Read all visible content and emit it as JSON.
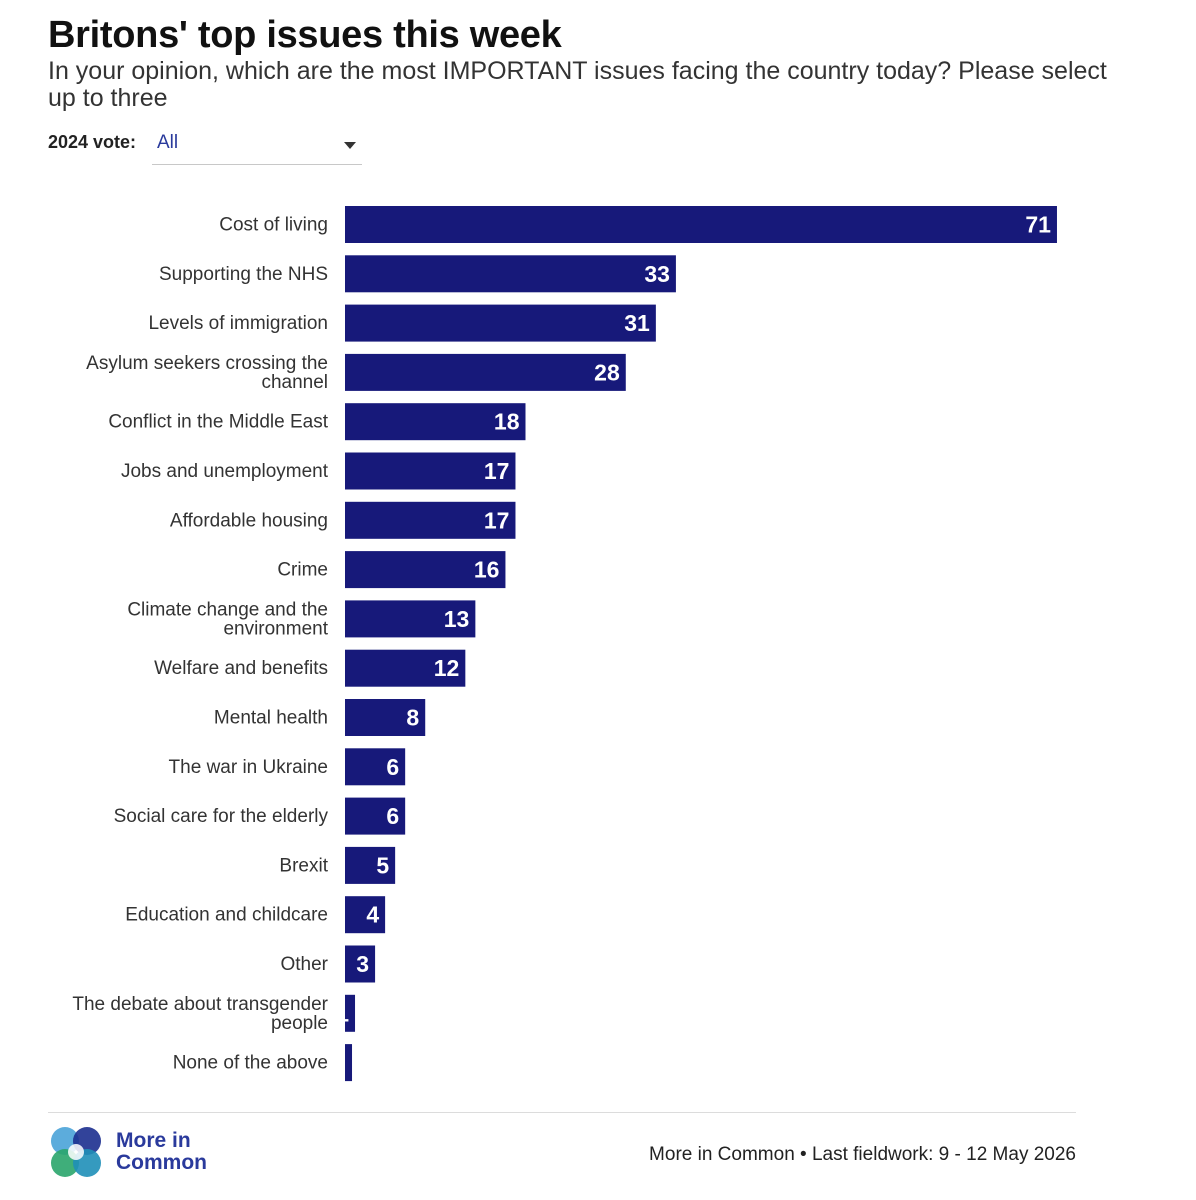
{
  "header": {
    "title": "Britons' top issues this week",
    "subtitle": "In your opinion, which are the most IMPORTANT issues facing the country today? Please select up to three"
  },
  "filter": {
    "label": "2024 vote:",
    "selected": "All"
  },
  "colors": {
    "bar": "#17197a",
    "bar_label": "#ffffff",
    "category_label": "#333333",
    "accent": "#2a3a9c"
  },
  "chart_data": {
    "type": "bar",
    "orientation": "horizontal",
    "categories": [
      "Cost of living",
      "Supporting the NHS",
      "Levels of immigration",
      "Asylum seekers crossing the channel",
      "Conflict in the Middle East",
      "Jobs and unemployment",
      "Affordable housing",
      "Crime",
      "Climate change and the environment",
      "Welfare and benefits",
      "Mental health",
      "The war in Ukraine",
      "Social care for the elderly",
      "Brexit",
      "Education and childcare",
      "Other",
      "The debate about transgender people",
      "None of the above"
    ],
    "values": [
      71,
      33,
      31,
      28,
      18,
      17,
      17,
      16,
      13,
      12,
      8,
      6,
      6,
      5,
      4,
      3,
      1,
      0.7
    ],
    "value_labels": [
      "71",
      "33",
      "31",
      "28",
      "18",
      "17",
      "17",
      "16",
      "13",
      "12",
      "8",
      "6",
      "6",
      "5",
      "4",
      "3",
      "1",
      ""
    ],
    "xlim": [
      0,
      72
    ],
    "grid": false,
    "legend": "none"
  },
  "footer": {
    "logo_line1": "More in",
    "logo_line2": "Common",
    "source": "More in Common • Last fieldwork: 9 - 12 May 2026"
  }
}
